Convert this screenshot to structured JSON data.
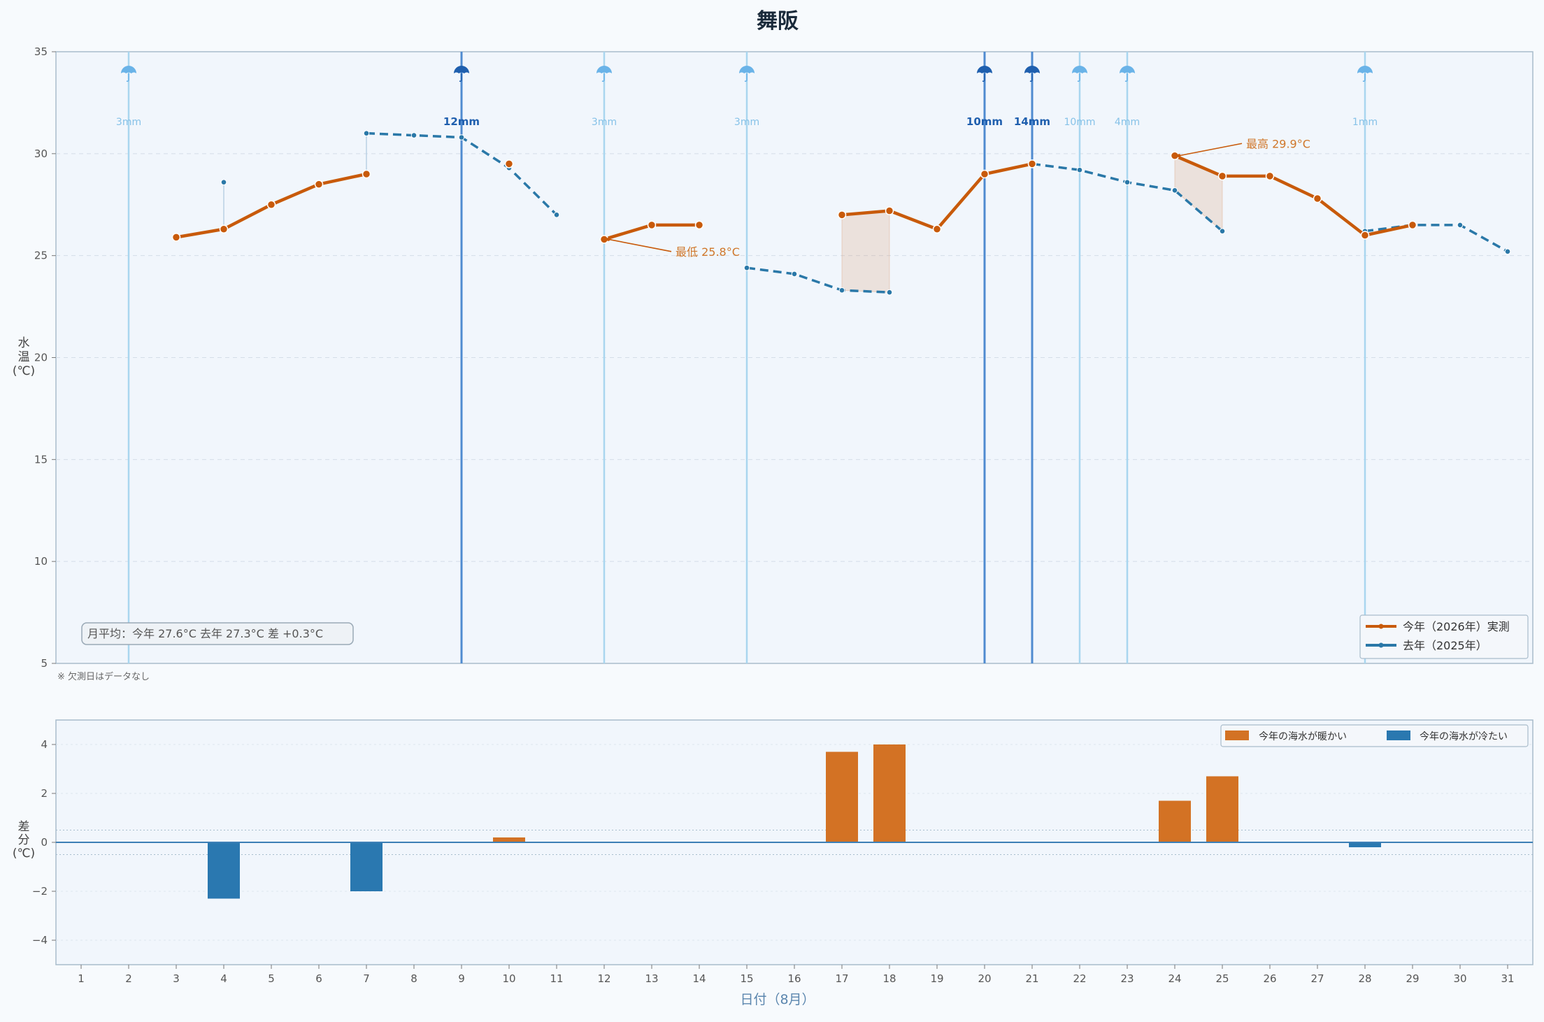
{
  "chart_data": [
    {
      "type": "line",
      "title": "舞阪",
      "ylabel": "水温(℃)",
      "ylim": [
        5,
        35
      ],
      "yticks": [
        5,
        10,
        15,
        20,
        25,
        30,
        35
      ],
      "x": [
        1,
        2,
        3,
        4,
        5,
        6,
        7,
        8,
        9,
        10,
        11,
        12,
        13,
        14,
        15,
        16,
        17,
        18,
        19,
        20,
        21,
        22,
        23,
        24,
        25,
        26,
        27,
        28,
        29,
        30,
        31
      ],
      "series": [
        {
          "name": "今年（2026年）実測",
          "color": "#c85a0a",
          "values": [
            null,
            null,
            25.9,
            26.3,
            27.5,
            28.5,
            29.0,
            null,
            null,
            29.5,
            null,
            25.8,
            26.5,
            26.5,
            null,
            null,
            27.0,
            27.2,
            26.3,
            29.0,
            29.5,
            null,
            null,
            29.9,
            28.9,
            28.9,
            27.8,
            26.0,
            26.5,
            null,
            null
          ]
        },
        {
          "name": "去年（2025年）",
          "color": "#2a78a8",
          "values": [
            null,
            null,
            null,
            28.6,
            null,
            null,
            31.0,
            30.9,
            30.8,
            29.3,
            27.0,
            null,
            null,
            null,
            24.4,
            24.1,
            23.3,
            23.2,
            null,
            null,
            29.5,
            29.2,
            28.6,
            28.2,
            26.2,
            null,
            null,
            26.2,
            26.5,
            26.5,
            25.2
          ]
        }
      ],
      "rain": [
        {
          "day": 2,
          "label": "3mm",
          "heavy": false
        },
        {
          "day": 9,
          "label": "12mm",
          "heavy": true
        },
        {
          "day": 12,
          "label": "3mm",
          "heavy": false
        },
        {
          "day": 15,
          "label": "3mm",
          "heavy": false
        },
        {
          "day": 20,
          "label": "10mm",
          "heavy": true
        },
        {
          "day": 21,
          "label": "14mm",
          "heavy": true
        },
        {
          "day": 22,
          "label": "10mm",
          "heavy": false
        },
        {
          "day": 23,
          "label": "4mm",
          "heavy": false
        },
        {
          "day": 28,
          "label": "1mm",
          "heavy": false
        }
      ],
      "rain_icon": "umbrella-icon",
      "annotations": [
        {
          "text": "最高 29.9°C",
          "day": 24,
          "value": 29.9,
          "text_day": 25.5,
          "text_value": 30.5
        },
        {
          "text": "最低 25.8°C",
          "day": 12,
          "value": 25.8,
          "text_day": 13.5,
          "text_value": 25.2
        }
      ],
      "summary": "月平均：今年 27.6°C  去年 27.3°C  差 +0.3°C",
      "note": "※ 欠測日はデータなし",
      "legend_position": "bottom-right"
    },
    {
      "type": "bar",
      "ylabel": "差分(℃)",
      "xlabel": "日付（8月）",
      "ylim": [
        -5,
        5
      ],
      "yticks": [
        -4,
        -2,
        0,
        2,
        4
      ],
      "bars": [
        {
          "day": 4,
          "value": -2.3
        },
        {
          "day": 7,
          "value": -2.0
        },
        {
          "day": 10,
          "value": 0.2
        },
        {
          "day": 17,
          "value": 3.7
        },
        {
          "day": 18,
          "value": 4.0
        },
        {
          "day": 24,
          "value": 1.7
        },
        {
          "day": 25,
          "value": 2.7
        },
        {
          "day": 28,
          "value": -0.2
        }
      ],
      "legend": [
        {
          "label": "今年の海水が暖かい",
          "color": "#d37224"
        },
        {
          "label": "今年の海水が冷たい",
          "color": "#2a78b0"
        }
      ],
      "legend_position": "top-right"
    }
  ]
}
